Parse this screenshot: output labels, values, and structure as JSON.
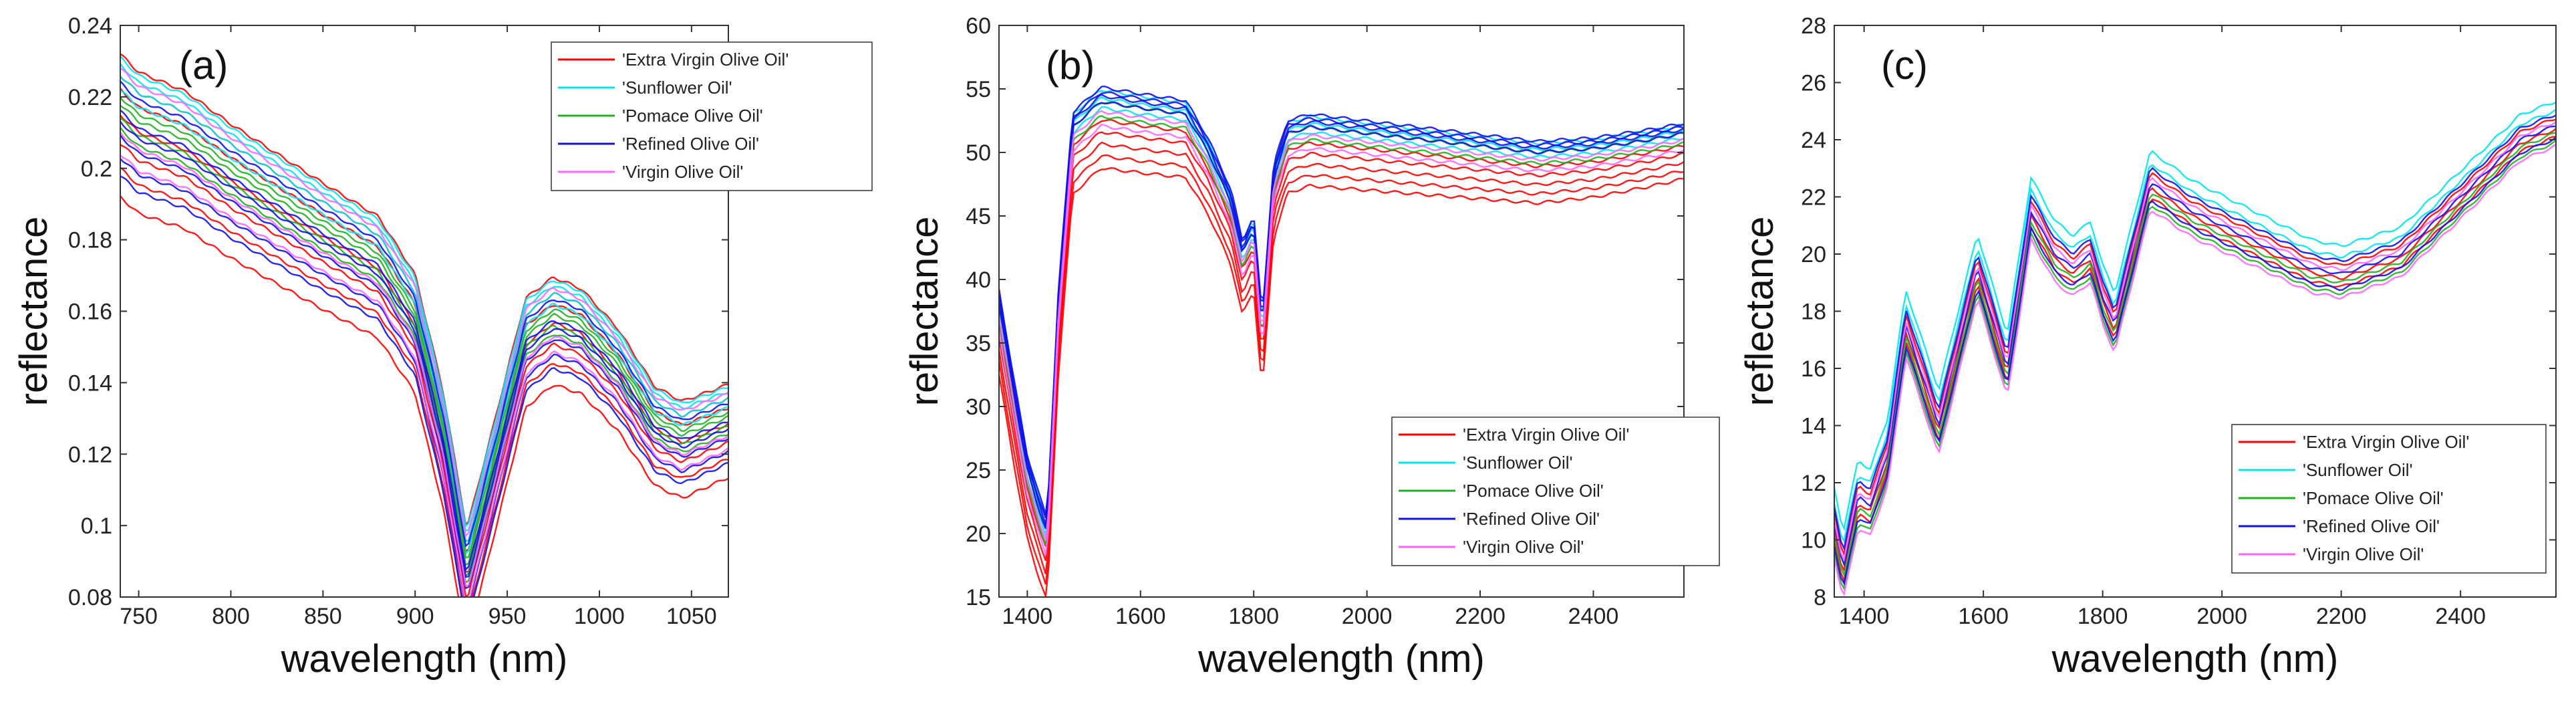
{
  "figure": {
    "legend_entries": [
      "'Extra Virgin Olive Oil'",
      "'Sunflower Oil'",
      "'Pomace Olive Oil'",
      "'Refined Olive Oil'",
      "'Virgin Olive Oil'"
    ],
    "series_colors": [
      "#ff0000",
      "#00e5ee",
      "#22b022",
      "#1010ee",
      "#ff66ff"
    ]
  },
  "chart_data": [
    {
      "type": "line",
      "panel_label": "(a)",
      "xlabel": "wavelength (nm)",
      "ylabel": "reflectance",
      "xlim": [
        740,
        1070
      ],
      "ylim": [
        0.08,
        0.24
      ],
      "xticks": [
        750,
        800,
        850,
        900,
        950,
        1000,
        1050
      ],
      "yticks": [
        0.08,
        0.1,
        0.12,
        0.14,
        0.16,
        0.18,
        0.2,
        0.22,
        0.24
      ],
      "xtick_labels": [
        "750",
        "800",
        "850",
        "900",
        "950",
        "1000",
        "1050"
      ],
      "ytick_labels": [
        "0.08",
        "0.1",
        "0.12",
        "0.14",
        "0.16",
        "0.18",
        "0.2",
        "0.22",
        "0.24"
      ],
      "legend_position": "top-right",
      "series": [
        {
          "name": "'Extra Virgin Olive Oil'",
          "profile": {
            "x": [
              740,
              750,
              775,
              800,
              850,
              880,
              900,
              915,
              928,
              940,
              960,
              975,
              990,
              1010,
              1030,
              1045,
              1060,
              1070
            ],
            "y": [
              0.222,
              0.217,
              0.212,
              0.203,
              0.187,
              0.178,
              0.162,
              0.13,
              0.091,
              0.115,
              0.156,
              0.162,
              0.159,
              0.148,
              0.132,
              0.128,
              0.131,
              0.133
            ]
          },
          "offsets": [
            0.01,
            0.0,
            -0.007,
            -0.015,
            -0.022,
            -0.03,
            0.004
          ]
        },
        {
          "name": "'Sunflower Oil'",
          "profile": {
            "x": [
              740,
              750,
              775,
              800,
              850,
              880,
              900,
              915,
              928,
              940,
              960,
              975,
              990,
              1010,
              1030,
              1045,
              1060,
              1070
            ],
            "y": [
              0.222,
              0.217,
              0.212,
              0.203,
              0.187,
              0.178,
              0.162,
              0.13,
              0.091,
              0.115,
              0.156,
              0.162,
              0.159,
              0.148,
              0.132,
              0.128,
              0.131,
              0.133
            ]
          },
          "offsets": [
            0.007,
            0.004,
            0.0,
            0.009
          ]
        },
        {
          "name": "'Pomace Olive Oil'",
          "profile": {
            "x": [
              740,
              750,
              775,
              800,
              850,
              880,
              900,
              915,
              928,
              940,
              960,
              975,
              990,
              1010,
              1030,
              1045,
              1060,
              1070
            ],
            "y": [
              0.222,
              0.217,
              0.212,
              0.203,
              0.187,
              0.178,
              0.162,
              0.13,
              0.091,
              0.115,
              0.156,
              0.162,
              0.159,
              0.148,
              0.132,
              0.128,
              0.131,
              0.133
            ]
          },
          "offsets": [
            -0.004,
            -0.008,
            -0.011,
            -0.002
          ]
        },
        {
          "name": "'Refined Olive Oil'",
          "profile": {
            "x": [
              740,
              750,
              775,
              800,
              850,
              880,
              900,
              915,
              928,
              940,
              960,
              975,
              990,
              1010,
              1030,
              1045,
              1060,
              1070
            ],
            "y": [
              0.222,
              0.217,
              0.212,
              0.203,
              0.187,
              0.178,
              0.162,
              0.13,
              0.091,
              0.115,
              0.156,
              0.162,
              0.159,
              0.148,
              0.132,
              0.128,
              0.131,
              0.133
            ]
          },
          "offsets": [
            -0.006,
            -0.013,
            -0.019,
            -0.024,
            0.002,
            -0.009
          ]
        },
        {
          "name": "'Virgin Olive Oil'",
          "profile": {
            "x": [
              740,
              750,
              775,
              800,
              850,
              880,
              900,
              915,
              928,
              940,
              960,
              975,
              990,
              1010,
              1030,
              1045,
              1060,
              1070
            ],
            "y": [
              0.222,
              0.217,
              0.212,
              0.203,
              0.187,
              0.178,
              0.162,
              0.13,
              0.091,
              0.115,
              0.156,
              0.162,
              0.159,
              0.148,
              0.132,
              0.128,
              0.131,
              0.133
            ]
          },
          "offsets": [
            -0.012,
            -0.018,
            0.006
          ]
        }
      ]
    },
    {
      "type": "line",
      "panel_label": "(b)",
      "xlabel": "wavelength (nm)",
      "ylabel": "reflectance",
      "xlim": [
        1350,
        2560
      ],
      "ylim": [
        15,
        60
      ],
      "xticks": [
        1400,
        1600,
        1800,
        2000,
        2200,
        2400
      ],
      "yticks": [
        15,
        20,
        25,
        30,
        35,
        40,
        45,
        50,
        55,
        60
      ],
      "xtick_labels": [
        "1400",
        "1600",
        "1800",
        "2000",
        "2200",
        "2400"
      ],
      "ytick_labels": [
        "15",
        "20",
        "25",
        "30",
        "35",
        "40",
        "45",
        "50",
        "55",
        "60"
      ],
      "legend_position": "bottom-right",
      "series": [
        {
          "name": "'Extra Virgin Olive Oil'",
          "profile": {
            "x": [
              1350,
              1380,
              1400,
              1420,
              1435,
              1455,
              1480,
              1530,
              1600,
              1680,
              1720,
              1760,
              1780,
              1800,
              1815,
              1835,
              1860,
              1900,
              2000,
              2100,
              2200,
              2300,
              2400,
              2500,
              2560
            ],
            "y": [
              38,
              30,
              25,
              22,
              20,
              38,
              52,
              54,
              53.5,
              53,
              50,
              46,
              42,
              44,
              36,
              48,
              51.5,
              52,
              51.5,
              51,
              50.5,
              50,
              50.3,
              51,
              51.5
            ]
          },
          "offsets": [
            -5.5,
            -4.5,
            -3.5,
            -2.5,
            -1.5
          ]
        },
        {
          "name": "'Sunflower Oil'",
          "profile": {
            "x": [
              1350,
              1380,
              1400,
              1420,
              1435,
              1455,
              1480,
              1530,
              1600,
              1680,
              1720,
              1760,
              1780,
              1800,
              1815,
              1835,
              1860,
              1900,
              2000,
              2100,
              2200,
              2300,
              2400,
              2500,
              2560
            ],
            "y": [
              38,
              30,
              25,
              22,
              20,
              38,
              52,
              54,
              53.5,
              53,
              50,
              46,
              42,
              44,
              36,
              48,
              51.5,
              52,
              51.5,
              51,
              50.5,
              50,
              50.3,
              51,
              51.5
            ]
          },
          "offsets": [
            -0.5,
            0.3,
            1.0
          ]
        },
        {
          "name": "'Pomace Olive Oil'",
          "profile": {
            "x": [
              1350,
              1380,
              1400,
              1420,
              1435,
              1455,
              1480,
              1530,
              1600,
              1680,
              1720,
              1760,
              1780,
              1800,
              1815,
              1835,
              1860,
              1900,
              2000,
              2100,
              2200,
              2300,
              2400,
              2500,
              2560
            ],
            "y": [
              38,
              30,
              25,
              22,
              20,
              38,
              52,
              54,
              53.5,
              53,
              50,
              46,
              42,
              44,
              36,
              48,
              51.5,
              52,
              51.5,
              51,
              50.5,
              50,
              50.3,
              51,
              51.5
            ]
          },
          "offsets": [
            -1.2,
            0.0
          ]
        },
        {
          "name": "'Refined Olive Oil'",
          "profile": {
            "x": [
              1350,
              1380,
              1400,
              1420,
              1435,
              1455,
              1480,
              1530,
              1600,
              1680,
              1720,
              1760,
              1780,
              1800,
              1815,
              1835,
              1860,
              1900,
              2000,
              2100,
              2200,
              2300,
              2400,
              2500,
              2560
            ],
            "y": [
              38,
              30,
              25,
              22,
              20,
              38,
              52,
              54,
              53.5,
              53,
              50,
              46,
              42,
              44,
              36,
              48,
              51.5,
              52,
              51.5,
              51,
              50.5,
              50,
              50.3,
              51,
              51.5
            ]
          },
          "offsets": [
            0.8,
            1.2,
            0.5,
            0.0
          ]
        },
        {
          "name": "'Virgin Olive Oil'",
          "profile": {
            "x": [
              1350,
              1380,
              1400,
              1420,
              1435,
              1455,
              1480,
              1530,
              1600,
              1680,
              1720,
              1760,
              1780,
              1800,
              1815,
              1835,
              1860,
              1900,
              2000,
              2100,
              2200,
              2300,
              2400,
              2500,
              2560
            ],
            "y": [
              38,
              30,
              25,
              22,
              20,
              38,
              52,
              54,
              53.5,
              53,
              50,
              46,
              42,
              44,
              36,
              48,
              51.5,
              52,
              51.5,
              51,
              50.5,
              50,
              50.3,
              51,
              51.5
            ]
          },
          "offsets": [
            -2.0,
            -0.8
          ]
        }
      ]
    },
    {
      "type": "line",
      "panel_label": "(c)",
      "xlabel": "wavelength (nm)",
      "ylabel": "reflectance",
      "xlim": [
        1350,
        2560
      ],
      "ylim": [
        8,
        28
      ],
      "xticks": [
        1400,
        1600,
        1800,
        2000,
        2200,
        2400
      ],
      "yticks": [
        8,
        10,
        12,
        14,
        16,
        18,
        20,
        22,
        24,
        26,
        28
      ],
      "xtick_labels": [
        "1400",
        "1600",
        "1800",
        "2000",
        "2200",
        "2400"
      ],
      "ytick_labels": [
        "8",
        "10",
        "12",
        "14",
        "16",
        "18",
        "20",
        "22",
        "24",
        "26",
        "28"
      ],
      "legend_position": "bottom-right",
      "series": [
        {
          "name": "'Extra Virgin Olive Oil'",
          "profile": {
            "x": [
              1350,
              1365,
              1390,
              1410,
              1440,
              1470,
              1525,
              1590,
              1640,
              1680,
              1720,
              1750,
              1780,
              1800,
              1820,
              1880,
              1950,
              2050,
              2150,
              2200,
              2300,
              2400,
              2500,
              2560
            ],
            "y": [
              10.5,
              9,
              11.5,
              11.2,
              13,
              17.5,
              14,
              19.5,
              16,
              21.5,
              20,
              19.5,
              20,
              18.5,
              17.5,
              22.5,
              21.5,
              20.5,
              19.5,
              19.3,
              20,
              22,
              24,
              24.5
            ]
          },
          "offsets": [
            -0.6,
            0.4,
            -0.2
          ]
        },
        {
          "name": "'Sunflower Oil'",
          "profile": {
            "x": [
              1350,
              1365,
              1390,
              1410,
              1440,
              1470,
              1525,
              1590,
              1640,
              1680,
              1720,
              1750,
              1780,
              1800,
              1820,
              1880,
              1950,
              2050,
              2150,
              2200,
              2300,
              2400,
              2500,
              2560
            ],
            "y": [
              10.5,
              9,
              11.5,
              11.2,
              13,
              17.5,
              14,
              19.5,
              16,
              21.5,
              20,
              19.5,
              20,
              18.5,
              17.5,
              22.5,
              21.5,
              20.5,
              19.5,
              19.3,
              20,
              22,
              24,
              24.5
            ]
          },
          "offsets": [
            1.3,
            0.8
          ]
        },
        {
          "name": "'Pomace Olive Oil'",
          "profile": {
            "x": [
              1350,
              1365,
              1390,
              1410,
              1440,
              1470,
              1525,
              1590,
              1640,
              1680,
              1720,
              1750,
              1780,
              1800,
              1820,
              1880,
              1950,
              2050,
              2150,
              2200,
              2300,
              2400,
              2500,
              2560
            ],
            "y": [
              10.5,
              9,
              11.5,
              11.2,
              13,
              17.5,
              14,
              19.5,
              16,
              21.5,
              20,
              19.5,
              20,
              18.5,
              17.5,
              22.5,
              21.5,
              20.5,
              19.5,
              19.3,
              20,
              22,
              24,
              24.5
            ]
          },
          "offsets": [
            -0.9,
            -0.4
          ]
        },
        {
          "name": "'Refined Olive Oil'",
          "profile": {
            "x": [
              1350,
              1365,
              1390,
              1410,
              1440,
              1470,
              1525,
              1590,
              1640,
              1680,
              1720,
              1750,
              1780,
              1800,
              1820,
              1880,
              1950,
              2050,
              2150,
              2200,
              2300,
              2400,
              2500,
              2560
            ],
            "y": [
              10.5,
              9,
              11.5,
              11.2,
              13,
              17.5,
              14,
              19.5,
              16,
              21.5,
              20,
              19.5,
              20,
              18.5,
              17.5,
              22.5,
              21.5,
              20.5,
              19.5,
              19.3,
              20,
              22,
              24,
              24.5
            ]
          },
          "offsets": [
            0.0,
            0.6,
            -0.7
          ]
        },
        {
          "name": "'Virgin Olive Oil'",
          "profile": {
            "x": [
              1350,
              1365,
              1390,
              1410,
              1440,
              1470,
              1525,
              1590,
              1640,
              1680,
              1720,
              1750,
              1780,
              1800,
              1820,
              1880,
              1950,
              2050,
              2150,
              2200,
              2300,
              2400,
              2500,
              2560
            ],
            "y": [
              10.5,
              9,
              11.5,
              11.2,
              13,
              17.5,
              14,
              19.5,
              16,
              21.5,
              20,
              19.5,
              20,
              18.5,
              17.5,
              22.5,
              21.5,
              20.5,
              19.5,
              19.3,
              20,
              22,
              24,
              24.5
            ]
          },
          "offsets": [
            0.2,
            -1.1
          ]
        }
      ]
    }
  ]
}
